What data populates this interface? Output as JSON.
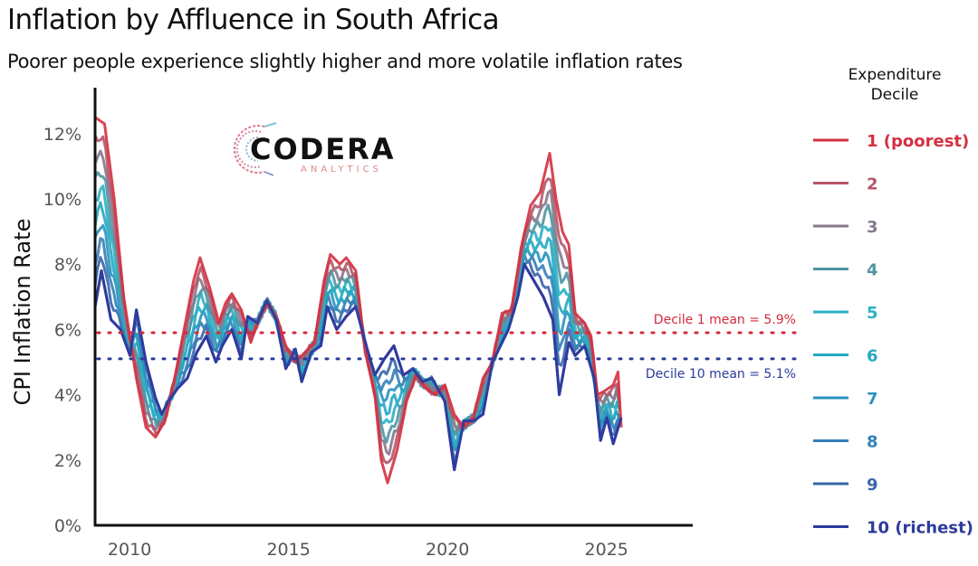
{
  "header": {
    "title": "Inflation by Affluence in South Africa",
    "subtitle": "Poorer people experience slightly higher and more volatile inflation rates"
  },
  "logo": {
    "name": "CODERA",
    "tagline": "ANALYTICS"
  },
  "chart_data": {
    "type": "line",
    "title": "Inflation by Affluence in South Africa",
    "subtitle": "Poorer people experience slightly higher and more volatile inflation rates",
    "xlabel": "",
    "ylabel": "CPI Inflation Rate",
    "xlim": [
      2009.0,
      2027.8
    ],
    "ylim": [
      0,
      13
    ],
    "x_ticks": [
      2010,
      2015,
      2020,
      2025
    ],
    "x_tick_labels": [
      "2010",
      "2015",
      "2020",
      "2025"
    ],
    "y_ticks": [
      0,
      2,
      4,
      6,
      8,
      10,
      12
    ],
    "y_tick_labels": [
      "0%",
      "2%",
      "4%",
      "6%",
      "8%",
      "10%",
      "12%"
    ],
    "grid": false,
    "legend": {
      "title": "Expenditure Decile",
      "placement": "right"
    },
    "reference_lines": [
      {
        "label": "Decile 1 mean = 5.9%",
        "value": 5.9,
        "color": "#d42a3c",
        "style": "dotted"
      },
      {
        "label": "Decile 10 mean = 5.1%",
        "value": 5.1,
        "color": "#2b3a9b",
        "style": "dotted"
      }
    ],
    "series": [
      {
        "name": "1 (poorest)",
        "color": "#d43040",
        "x": [
          2009.0,
          2009.3,
          2009.6,
          2009.9,
          2010.3,
          2010.6,
          2010.9,
          2011.2,
          2011.5,
          2011.8,
          2012.1,
          2012.3,
          2012.6,
          2012.9,
          2013.1,
          2013.3,
          2013.6,
          2013.9,
          2014.1,
          2014.4,
          2014.7,
          2015.0,
          2015.3,
          2015.6,
          2015.9,
          2016.2,
          2016.4,
          2016.7,
          2016.9,
          2017.2,
          2017.5,
          2017.8,
          2018.0,
          2018.2,
          2018.5,
          2018.8,
          2019.1,
          2019.4,
          2019.7,
          2020.0,
          2020.3,
          2020.6,
          2020.9,
          2021.2,
          2021.5,
          2021.8,
          2022.1,
          2022.4,
          2022.7,
          2023.0,
          2023.3,
          2023.5,
          2023.7,
          2023.9,
          2024.1,
          2024.4,
          2024.6,
          2024.8,
          2025.0,
          2025.3,
          2025.45,
          2025.55
        ],
        "y": [
          12.5,
          12.3,
          10.0,
          7.0,
          4.5,
          3.0,
          2.7,
          3.2,
          4.5,
          6.0,
          7.5,
          8.2,
          7.3,
          6.2,
          6.8,
          7.1,
          6.6,
          5.6,
          6.2,
          6.8,
          6.4,
          5.5,
          5.0,
          5.3,
          5.6,
          7.5,
          8.3,
          8.0,
          8.2,
          7.8,
          5.3,
          4.0,
          2.0,
          1.3,
          2.3,
          3.8,
          4.6,
          4.2,
          4.0,
          4.3,
          3.4,
          3.0,
          3.3,
          4.5,
          5.0,
          6.5,
          6.6,
          8.5,
          9.8,
          10.2,
          11.4,
          10.0,
          9.0,
          8.6,
          6.5,
          6.2,
          5.8,
          4.0,
          4.1,
          4.3,
          4.7,
          3.0
        ]
      },
      {
        "name": "2",
        "color": "#b5566a",
        "blend": 0.11
      },
      {
        "name": "3",
        "color": "#85798c",
        "blend": 0.22
      },
      {
        "name": "4",
        "color": "#4f95a3",
        "blend": 0.33
      },
      {
        "name": "5",
        "color": "#2bb0c3",
        "blend": 0.44
      },
      {
        "name": "6",
        "color": "#25a8c2",
        "blend": 0.55
      },
      {
        "name": "7",
        "color": "#2893bd",
        "blend": 0.66
      },
      {
        "name": "8",
        "color": "#3580b8",
        "blend": 0.77
      },
      {
        "name": "9",
        "color": "#3766ab",
        "blend": 0.88
      },
      {
        "name": "10 (richest)",
        "color": "#2d3a9d",
        "x": [
          2009.0,
          2009.2,
          2009.5,
          2009.8,
          2010.1,
          2010.3,
          2010.6,
          2010.9,
          2011.1,
          2011.3,
          2011.6,
          2011.9,
          2012.2,
          2012.5,
          2012.8,
          2013.0,
          2013.3,
          2013.6,
          2013.8,
          2014.1,
          2014.4,
          2014.7,
          2015.0,
          2015.3,
          2015.5,
          2015.8,
          2016.1,
          2016.3,
          2016.6,
          2016.9,
          2017.2,
          2017.5,
          2017.8,
          2018.1,
          2018.4,
          2018.7,
          2019.0,
          2019.3,
          2019.6,
          2020.0,
          2020.3,
          2020.6,
          2020.9,
          2021.2,
          2021.5,
          2021.7,
          2022.0,
          2022.3,
          2022.5,
          2022.8,
          2023.1,
          2023.4,
          2023.6,
          2023.9,
          2024.1,
          2024.4,
          2024.7,
          2024.9,
          2025.1,
          2025.3,
          2025.55
        ],
        "y": [
          6.7,
          7.8,
          6.3,
          6.0,
          5.2,
          6.6,
          5.0,
          3.9,
          3.4,
          3.8,
          4.2,
          4.5,
          5.3,
          5.8,
          5.0,
          5.5,
          6.0,
          5.1,
          6.4,
          6.2,
          6.9,
          6.3,
          4.8,
          5.4,
          4.4,
          5.3,
          5.5,
          6.7,
          6.0,
          6.4,
          6.7,
          5.6,
          4.6,
          5.1,
          5.5,
          4.6,
          4.8,
          4.4,
          4.5,
          3.8,
          1.7,
          3.2,
          3.2,
          3.4,
          5.0,
          5.4,
          6.0,
          7.0,
          8.0,
          7.5,
          7.0,
          6.3,
          4.0,
          5.6,
          5.2,
          5.5,
          4.5,
          2.6,
          3.3,
          2.5,
          3.3
        ]
      }
    ]
  }
}
